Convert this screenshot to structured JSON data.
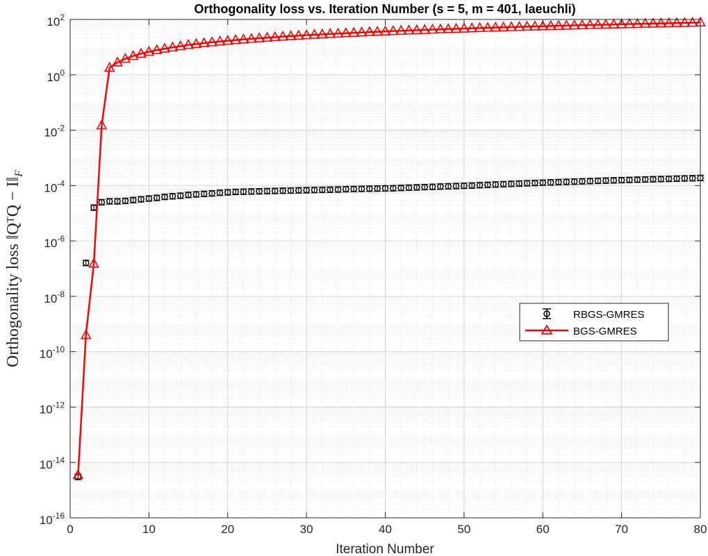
{
  "chart_data": {
    "type": "line",
    "title": "Orthogonality loss vs. Iteration Number (s = 5, m = 401, laeuchli)",
    "xlabel": "Iteration Number",
    "ylabel": "Orthogonality loss ‖QᵀQ − I‖",
    "ylabel_subscript": "F",
    "xlim": [
      0,
      80
    ],
    "ylim_log10": [
      -16,
      2
    ],
    "yscale": "log",
    "grid": true,
    "minor_grid": true,
    "legend_position": "center-right",
    "x_ticks": [
      "0",
      "10",
      "20",
      "30",
      "40",
      "50",
      "60",
      "70",
      "80"
    ],
    "y_tick_base": "10",
    "y_tick_exponents": [
      "-16",
      "-14",
      "-12",
      "-10",
      "-8",
      "-6",
      "-4",
      "-2",
      "0",
      "2"
    ],
    "x": [
      1,
      2,
      3,
      4,
      5,
      6,
      7,
      8,
      9,
      10,
      11,
      12,
      13,
      14,
      15,
      16,
      17,
      18,
      19,
      20,
      21,
      22,
      23,
      24,
      25,
      26,
      27,
      28,
      29,
      30,
      31,
      32,
      33,
      34,
      35,
      36,
      37,
      38,
      39,
      40,
      41,
      42,
      43,
      44,
      45,
      46,
      47,
      48,
      49,
      50,
      51,
      52,
      53,
      54,
      55,
      56,
      57,
      58,
      59,
      60,
      61,
      62,
      63,
      64,
      65,
      66,
      67,
      68,
      69,
      70,
      71,
      72,
      73,
      74,
      75,
      76,
      77,
      78,
      79,
      80
    ],
    "series": [
      {
        "name": "RBGS-GMRES",
        "color": "#000000",
        "marker": "circle",
        "start_x": 1,
        "values": [
          3e-15,
          1.6e-07,
          1.6e-05,
          2.5e-05,
          2.7e-05,
          2.7e-05,
          2.8e-05,
          3e-05,
          3.2e-05,
          3.4e-05,
          3.6e-05,
          3.9e-05,
          4.1e-05,
          4.3e-05,
          4.6e-05,
          4.8e-05,
          5e-05,
          5.2e-05,
          5.5e-05,
          5.7e-05,
          5.9e-05,
          6e-05,
          6.1e-05,
          6.2e-05,
          6.3e-05,
          6.4e-05,
          6.5e-05,
          6.6e-05,
          6.7e-05,
          6.8e-05,
          6.9e-05,
          7e-05,
          7.1e-05,
          7.2e-05,
          7.4e-05,
          7.5e-05,
          7.6e-05,
          7.7e-05,
          7.8e-05,
          7.9e-05,
          8e-05,
          8.2e-05,
          8.4e-05,
          8.6e-05,
          8.8e-05,
          9e-05,
          9.2e-05,
          9.4e-05,
          9.6e-05,
          9.8e-05,
          0.0001,
          0.000103,
          0.000106,
          0.000109,
          0.000112,
          0.000115,
          0.000118,
          0.000121,
          0.000124,
          0.000127,
          0.00013,
          0.000133,
          0.000136,
          0.000139,
          0.000142,
          0.000145,
          0.000148,
          0.000151,
          0.000154,
          0.000157,
          0.00016,
          0.000163,
          0.000166,
          0.000169,
          0.000172,
          0.000175,
          0.000178,
          0.000181,
          0.000184,
          0.000188
        ]
      },
      {
        "name": "BGS-GMRES",
        "color": "#ff0000",
        "marker": "triangle",
        "start_x": 1,
        "values": [
          3.5e-15,
          4e-10,
          1.5e-07,
          0.015,
          1.8,
          2.8,
          3.8,
          4.8,
          5.8,
          6.8,
          7.8,
          8.8,
          9.8,
          10.8,
          12,
          13,
          14,
          15,
          16,
          17,
          18,
          19,
          20,
          21,
          22,
          23,
          24,
          25,
          26,
          27,
          28,
          29,
          30,
          31,
          32,
          33,
          34,
          35,
          36,
          37,
          38,
          39,
          40,
          41,
          42,
          43,
          44,
          45,
          46,
          47,
          48,
          49,
          50,
          51,
          52,
          53,
          54,
          55,
          56,
          57,
          58,
          59,
          60,
          61,
          62,
          63,
          64,
          65,
          66,
          67,
          68,
          69,
          70,
          71,
          72,
          73,
          74,
          75,
          76,
          78
        ]
      }
    ]
  }
}
